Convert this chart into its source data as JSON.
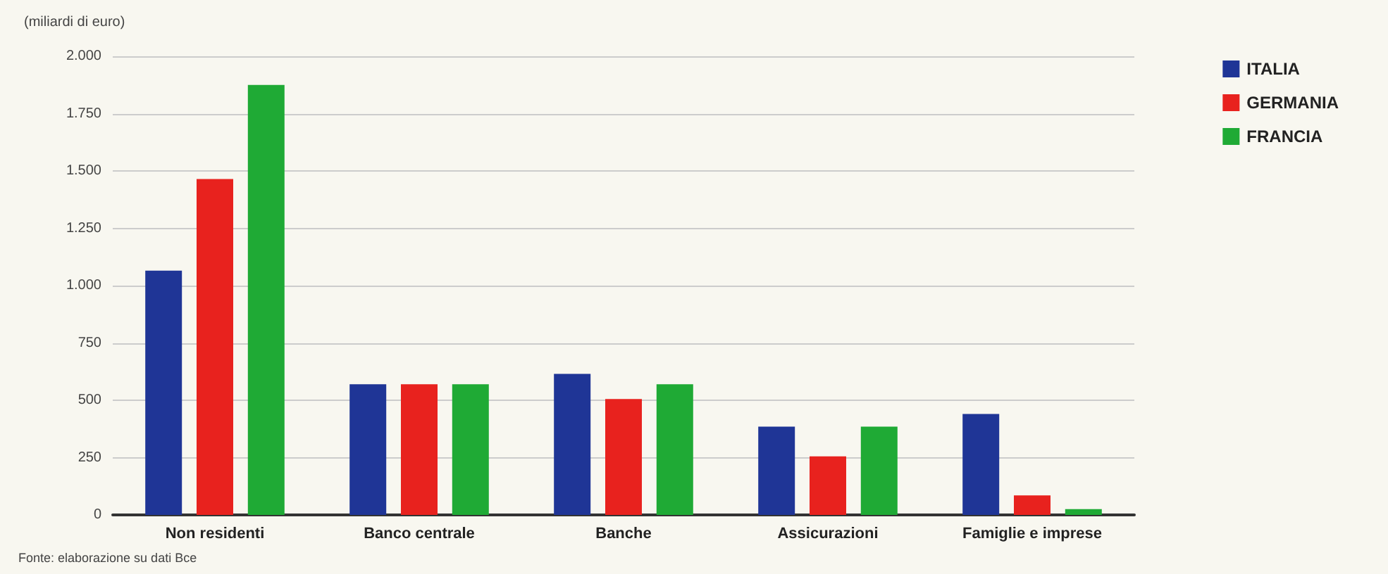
{
  "chart_data": {
    "type": "bar",
    "subtitle": "(miliardi di euro)",
    "categories": [
      "Non residenti",
      "Banco centrale",
      "Banche",
      "Assicurazioni",
      "Famiglie e imprese"
    ],
    "series": [
      {
        "name": "ITALIA",
        "color": "#1f3596",
        "values": [
          1065,
          570,
          615,
          385,
          440
        ]
      },
      {
        "name": "GERMANIA",
        "color": "#e8221e",
        "values": [
          1465,
          570,
          505,
          255,
          85
        ]
      },
      {
        "name": "FRANCIA",
        "color": "#1faa35",
        "values": [
          1875,
          570,
          570,
          385,
          25
        ]
      }
    ],
    "ylim": [
      0,
      2000
    ],
    "yticks": [
      0,
      250,
      500,
      750,
      {
        "value": 1000,
        "label": "1.000"
      },
      {
        "value": 1250,
        "label": "1.250"
      },
      {
        "value": 1500,
        "label": "1.500"
      },
      {
        "value": 1750,
        "label": "1.750"
      },
      {
        "value": 2000,
        "label": "2.000"
      }
    ],
    "grid": "y",
    "legend": "top right",
    "annotations": [
      "Fonte: elaborazione su dati Bce"
    ]
  }
}
